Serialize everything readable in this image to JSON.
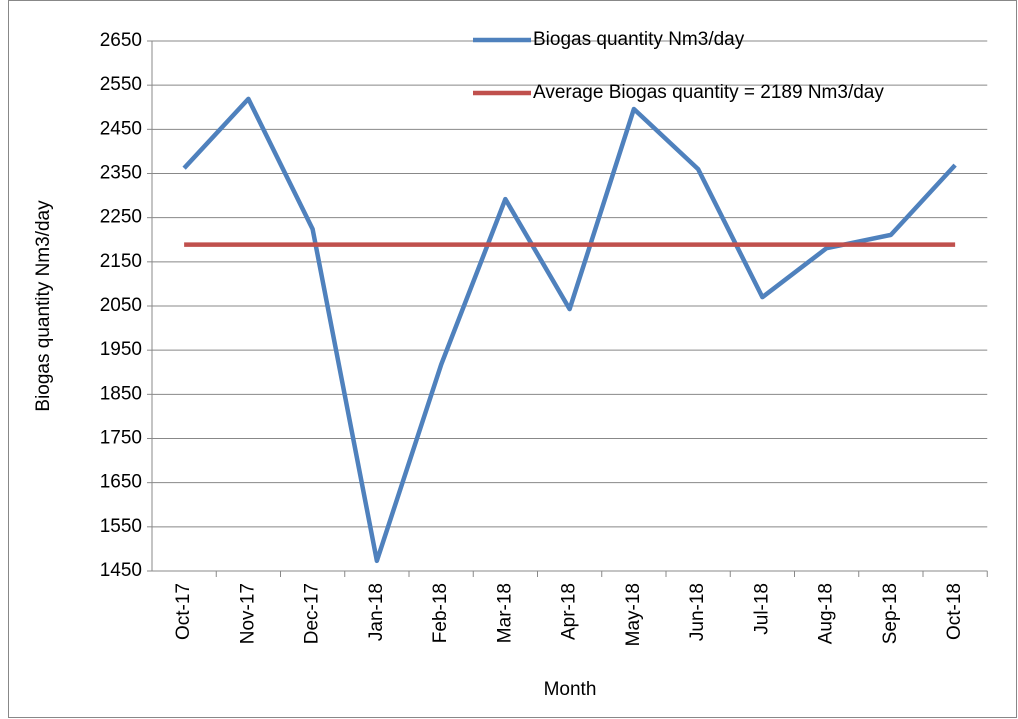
{
  "chart_data": {
    "type": "line",
    "x_label": "Month",
    "y_label": "Biogas quantity Nm3/day",
    "categories": [
      "Oct-17",
      "Nov-17",
      "Dec-17",
      "Jan-18",
      "Feb-18",
      "Mar-18",
      "Apr-18",
      "May-18",
      "Jun-18",
      "Jul-18",
      "Aug-18",
      "Sep-18",
      "Oct-18"
    ],
    "series": [
      {
        "name": "Biogas quantity Nm3/day",
        "color": "#4f81bd",
        "values": [
          2362,
          2519,
          2224,
          1473,
          1917,
          2292,
          2043,
          2496,
          2360,
          2070,
          2181,
          2211,
          2369
        ]
      },
      {
        "name": "Average Biogas quantity = 2189 Nm3/day",
        "color": "#c0504d",
        "values": [
          2189,
          2189,
          2189,
          2189,
          2189,
          2189,
          2189,
          2189,
          2189,
          2189,
          2189,
          2189,
          2189
        ]
      }
    ],
    "ylim": [
      1450,
      2650
    ],
    "yticks": [
      1450,
      1550,
      1650,
      1750,
      1850,
      1950,
      2050,
      2150,
      2250,
      2350,
      2450,
      2550,
      2650
    ],
    "grid": true,
    "legend": "top-right"
  }
}
